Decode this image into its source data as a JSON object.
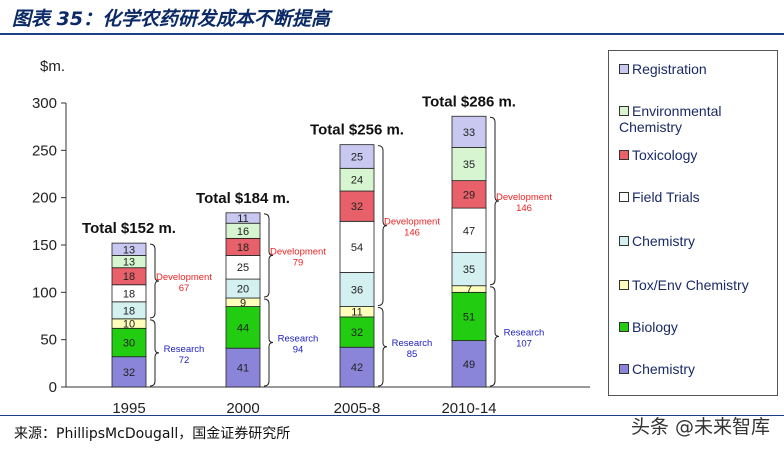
{
  "header": {
    "title": "图表 35：化学农药研发成本不断提高"
  },
  "footer": {
    "source": "来源：PhillipsMcDougall，国金证券研究所",
    "watermark": "头条 @未来智库"
  },
  "colors": {
    "Chemistry_research": "#8a85d8",
    "Biology": "#22cc11",
    "Tox/Env Chemistry": "#ffffbb",
    "Chemistry_dev": "#d4f0f0",
    "Field Trials": "#ffffff",
    "Toxicology": "#e8606a",
    "Environmental Chemistry": "#d6f5d0",
    "Registration": "#c8c8f0",
    "research_text": "#2020c0",
    "development_text": "#ee2222"
  },
  "legend": [
    {
      "label": "Registration",
      "key": "Registration"
    },
    {
      "label": "Environmental Chemistry",
      "key": "Environmental Chemistry"
    },
    {
      "label": "Toxicology",
      "key": "Toxicology"
    },
    {
      "label": "Field Trials",
      "key": "Field Trials"
    },
    {
      "label": "Chemistry",
      "key": "Chemistry_dev"
    },
    {
      "label": "Tox/Env Chemistry",
      "key": "Tox/Env Chemistry"
    },
    {
      "label": "Biology",
      "key": "Biology"
    },
    {
      "label": "Chemistry",
      "key": "Chemistry_research"
    }
  ],
  "chart_data": {
    "type": "bar",
    "stacked": true,
    "ylabel": "$m.",
    "ylim": [
      0,
      300
    ],
    "yticks": [
      0,
      50,
      100,
      150,
      200,
      250,
      300
    ],
    "categories": [
      "1995",
      "2000",
      "2005-8",
      "2010-14"
    ],
    "totals": [
      "Total $152 m.",
      "Total $184 m.",
      "Total $256 m.",
      "Total $286 m."
    ],
    "series": [
      {
        "name": "Chemistry",
        "key": "Chemistry_research",
        "values": [
          32,
          41,
          42,
          49
        ]
      },
      {
        "name": "Biology",
        "key": "Biology",
        "values": [
          30,
          44,
          32,
          51
        ]
      },
      {
        "name": "Tox/Env Chemistry",
        "key": "Tox/Env Chemistry",
        "values": [
          10,
          9,
          11,
          7
        ]
      },
      {
        "name": "Chemistry",
        "key": "Chemistry_dev",
        "values": [
          18,
          20,
          36,
          35
        ]
      },
      {
        "name": "Field Trials",
        "key": "Field Trials",
        "values": [
          18,
          25,
          54,
          47
        ]
      },
      {
        "name": "Toxicology",
        "key": "Toxicology",
        "values": [
          18,
          18,
          32,
          29
        ]
      },
      {
        "name": "Environmental Chemistry",
        "key": "Environmental Chemistry",
        "values": [
          13,
          16,
          24,
          35
        ]
      },
      {
        "name": "Registration",
        "key": "Registration",
        "values": [
          13,
          11,
          25,
          33
        ]
      }
    ],
    "research": {
      "label": "Research",
      "values": [
        "72",
        "94",
        "85",
        "107"
      ]
    },
    "development": {
      "label": "Development",
      "values": [
        "67",
        "79",
        "146",
        "146"
      ]
    }
  }
}
